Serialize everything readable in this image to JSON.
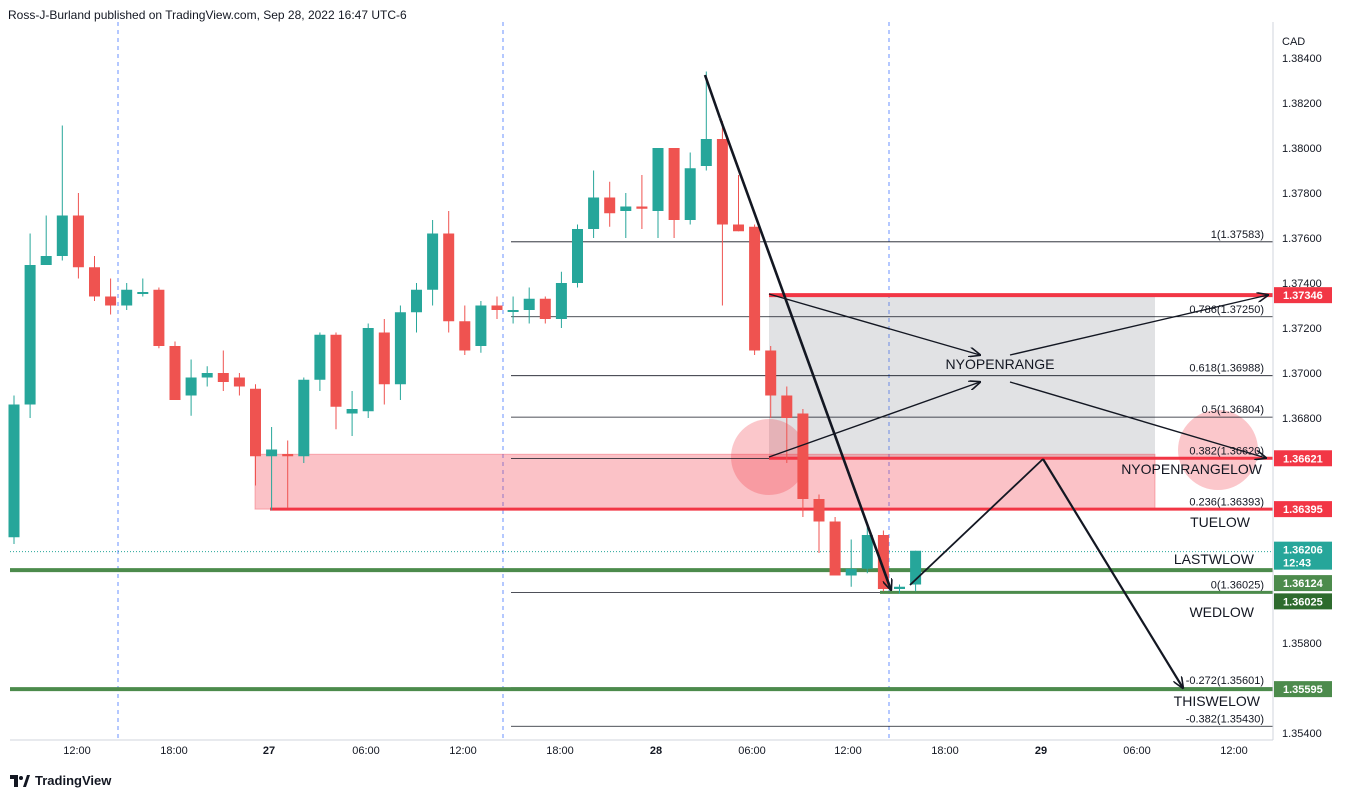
{
  "header": {
    "text": "Ross-J-Burland published on TradingView.com, Sep 28, 2022 16:47 UTC-6"
  },
  "footer": {
    "brand": "TradingView",
    "logo_icon": "tradingview-logo-icon"
  },
  "colors": {
    "up": "#26a69a",
    "down": "#ef5350",
    "zone_red": "rgba(242,54,69,0.3)",
    "zone_grey": "rgba(120,123,134,0.22)",
    "red_line": "#f23645",
    "green_line": "#4c8b4c",
    "fib_line": "#131722"
  },
  "chart_data": {
    "type": "candlestick",
    "currency": "CAD",
    "y_axis": {
      "ticks": [
        "1.38400",
        "1.38200",
        "1.38000",
        "1.37800",
        "1.37600",
        "1.37400",
        "1.37200",
        "1.37000",
        "1.36800",
        "1.35800",
        "1.35400"
      ],
      "range": [
        1.354,
        1.3844
      ]
    },
    "x_axis": {
      "ticks": [
        "12:00",
        "18:00",
        "27",
        "06:00",
        "12:00",
        "18:00",
        "28",
        "06:00",
        "12:00",
        "18:00",
        "29",
        "06:00",
        "12:00"
      ]
    },
    "candles": [
      {
        "o": 1.3627,
        "h": 1.369,
        "l": 1.3624,
        "c": 1.3686
      },
      {
        "o": 1.3686,
        "h": 1.3762,
        "l": 1.368,
        "c": 1.3748
      },
      {
        "o": 1.3748,
        "h": 1.377,
        "l": 1.3748,
        "c": 1.3752
      },
      {
        "o": 1.3752,
        "h": 1.381,
        "l": 1.375,
        "c": 1.377
      },
      {
        "o": 1.377,
        "h": 1.378,
        "l": 1.3742,
        "c": 1.3747
      },
      {
        "o": 1.3747,
        "h": 1.3752,
        "l": 1.3732,
        "c": 1.3734
      },
      {
        "o": 1.3734,
        "h": 1.3742,
        "l": 1.3726,
        "c": 1.373
      },
      {
        "o": 1.373,
        "h": 1.374,
        "l": 1.3728,
        "c": 1.3737
      },
      {
        "o": 1.3736,
        "h": 1.3742,
        "l": 1.3734,
        "c": 1.3736
      },
      {
        "o": 1.3737,
        "h": 1.3738,
        "l": 1.3711,
        "c": 1.3712
      },
      {
        "o": 1.3712,
        "h": 1.3714,
        "l": 1.369,
        "c": 1.3688
      },
      {
        "o": 1.369,
        "h": 1.3706,
        "l": 1.3681,
        "c": 1.3698
      },
      {
        "o": 1.3698,
        "h": 1.3703,
        "l": 1.3694,
        "c": 1.37
      },
      {
        "o": 1.37,
        "h": 1.371,
        "l": 1.3692,
        "c": 1.3696
      },
      {
        "o": 1.3698,
        "h": 1.37,
        "l": 1.369,
        "c": 1.3694
      },
      {
        "o": 1.3693,
        "h": 1.3695,
        "l": 1.365,
        "c": 1.3663
      },
      {
        "o": 1.3663,
        "h": 1.3676,
        "l": 1.3639,
        "c": 1.3666
      },
      {
        "o": 1.3664,
        "h": 1.367,
        "l": 1.364,
        "c": 1.3663
      },
      {
        "o": 1.3663,
        "h": 1.3698,
        "l": 1.366,
        "c": 1.3697
      },
      {
        "o": 1.3697,
        "h": 1.3718,
        "l": 1.3692,
        "c": 1.3717
      },
      {
        "o": 1.3717,
        "h": 1.3718,
        "l": 1.3675,
        "c": 1.3685
      },
      {
        "o": 1.3682,
        "h": 1.3692,
        "l": 1.3672,
        "c": 1.3684
      },
      {
        "o": 1.3683,
        "h": 1.3722,
        "l": 1.368,
        "c": 1.372
      },
      {
        "o": 1.3718,
        "h": 1.3724,
        "l": 1.3686,
        "c": 1.3695
      },
      {
        "o": 1.3695,
        "h": 1.373,
        "l": 1.3688,
        "c": 1.3727
      },
      {
        "o": 1.3727,
        "h": 1.374,
        "l": 1.3718,
        "c": 1.3737
      },
      {
        "o": 1.3737,
        "h": 1.3768,
        "l": 1.373,
        "c": 1.3762
      },
      {
        "o": 1.3762,
        "h": 1.3772,
        "l": 1.3718,
        "c": 1.3723
      },
      {
        "o": 1.3723,
        "h": 1.373,
        "l": 1.3708,
        "c": 1.371
      },
      {
        "o": 1.3712,
        "h": 1.3732,
        "l": 1.3709,
        "c": 1.373
      },
      {
        "o": 1.373,
        "h": 1.3734,
        "l": 1.3724,
        "c": 1.3728
      },
      {
        "o": 1.3728,
        "h": 1.3734,
        "l": 1.3722,
        "c": 1.3728
      },
      {
        "o": 1.3728,
        "h": 1.3738,
        "l": 1.3722,
        "c": 1.3733
      },
      {
        "o": 1.3733,
        "h": 1.3734,
        "l": 1.3722,
        "c": 1.3724
      },
      {
        "o": 1.3724,
        "h": 1.3745,
        "l": 1.372,
        "c": 1.374
      },
      {
        "o": 1.374,
        "h": 1.3766,
        "l": 1.3738,
        "c": 1.3764
      },
      {
        "o": 1.3764,
        "h": 1.379,
        "l": 1.376,
        "c": 1.3778
      },
      {
        "o": 1.3778,
        "h": 1.3785,
        "l": 1.3765,
        "c": 1.3771
      },
      {
        "o": 1.3772,
        "h": 1.378,
        "l": 1.376,
        "c": 1.3774
      },
      {
        "o": 1.3774,
        "h": 1.3788,
        "l": 1.3764,
        "c": 1.3773
      },
      {
        "o": 1.3772,
        "h": 1.38,
        "l": 1.376,
        "c": 1.38
      },
      {
        "o": 1.38,
        "h": 1.38,
        "l": 1.376,
        "c": 1.3768
      },
      {
        "o": 1.3768,
        "h": 1.3798,
        "l": 1.3766,
        "c": 1.3791
      },
      {
        "o": 1.3792,
        "h": 1.3834,
        "l": 1.379,
        "c": 1.3804
      },
      {
        "o": 1.3804,
        "h": 1.3812,
        "l": 1.373,
        "c": 1.3766
      },
      {
        "o": 1.3766,
        "h": 1.3788,
        "l": 1.3763,
        "c": 1.3763
      },
      {
        "o": 1.3765,
        "h": 1.3766,
        "l": 1.3708,
        "c": 1.371
      },
      {
        "o": 1.371,
        "h": 1.3712,
        "l": 1.368,
        "c": 1.369
      },
      {
        "o": 1.369,
        "h": 1.3694,
        "l": 1.366,
        "c": 1.368
      },
      {
        "o": 1.3682,
        "h": 1.3684,
        "l": 1.3636,
        "c": 1.3644
      },
      {
        "o": 1.3644,
        "h": 1.3646,
        "l": 1.362,
        "c": 1.3634
      },
      {
        "o": 1.3634,
        "h": 1.3636,
        "l": 1.361,
        "c": 1.361
      },
      {
        "o": 1.361,
        "h": 1.3626,
        "l": 1.3605,
        "c": 1.3613
      },
      {
        "o": 1.3613,
        "h": 1.3632,
        "l": 1.3611,
        "c": 1.3628
      },
      {
        "o": 1.3628,
        "h": 1.363,
        "l": 1.3603,
        "c": 1.3604
      },
      {
        "o": 1.3604,
        "h": 1.3606,
        "l": 1.3602,
        "c": 1.3605
      },
      {
        "o": 1.3606,
        "h": 1.3621,
        "l": 1.3603,
        "c": 1.3621
      }
    ],
    "fib_levels": [
      {
        "label": "1(1.37583)",
        "price": 1.37583
      },
      {
        "label": "0.786(1.37250)",
        "price": 1.3725
      },
      {
        "label": "0.618(1.36988)",
        "price": 1.36988
      },
      {
        "label": "0.5(1.36804)",
        "price": 1.36804
      },
      {
        "label": "0.382(1.36620)",
        "price": 1.3662
      },
      {
        "label": "0.236(1.36393)",
        "price": 1.36393
      },
      {
        "label": "0(1.36025)",
        "price": 1.36025
      },
      {
        "label": "-0.272(1.35601)",
        "price": 1.35601
      },
      {
        "label": "-0.382(1.35430)",
        "price": 1.3543
      }
    ],
    "price_lines": [
      {
        "label": "1.37346",
        "price": 1.37346,
        "color": "#f23645"
      },
      {
        "label": "1.36621",
        "price": 1.36621,
        "color": "#f23645"
      },
      {
        "label": "1.36395",
        "price": 1.36395,
        "color": "#f23645"
      },
      {
        "label": "1.36124",
        "price": 1.36124,
        "color": "#4c8b4c"
      },
      {
        "label": "1.36025",
        "price": 1.36025,
        "color": "#2e6b2e"
      },
      {
        "label": "1.35595",
        "price": 1.35595,
        "color": "#4c8b4c"
      }
    ],
    "current_price": {
      "price": "1.36206",
      "countdown": "12:43",
      "value": 1.36206
    },
    "zones": [
      {
        "name": "NYOPENRANGE",
        "top": 1.37346,
        "bottom": 1.36621
      },
      {
        "name": "red-support-zone",
        "top": 1.36621,
        "bottom": 1.36395
      }
    ],
    "level_labels": [
      "NYOPENRANGE",
      "NYOPENRANGELOW",
      "TUELOW",
      "LASTWLOW",
      "WEDLOW",
      "THISWELOW"
    ]
  }
}
